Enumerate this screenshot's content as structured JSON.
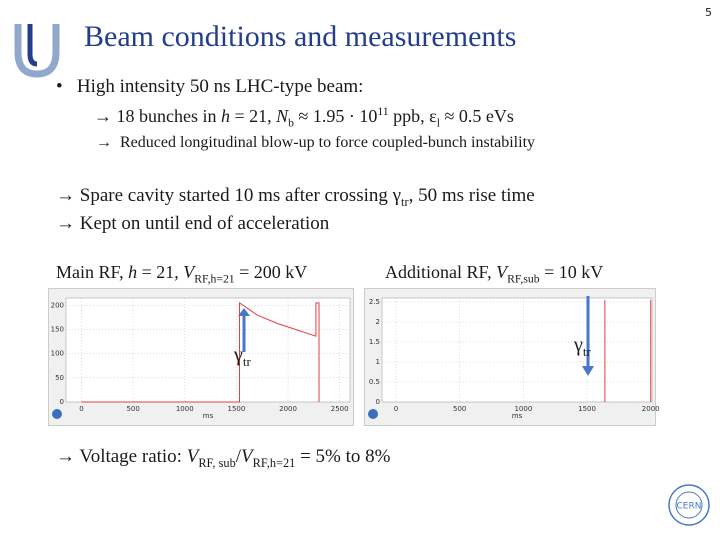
{
  "slide_number": "5",
  "title": "Beam conditions and measurements",
  "bullet": [
    "•",
    "High intensity 50 ns LHC-type beam:"
  ],
  "sub_1": [
    "→ ",
    "18 bunches in ",
    "h",
    " = 21, ",
    "N",
    "b",
    " ≈ 1.95 · 10",
    "11",
    " ppb, ",
    "ε",
    "l",
    " ≈ 0.5 eVs"
  ],
  "sub_2": [
    "→ ",
    "Reduced longitudinal blow-up to force coupled-bunch instability"
  ],
  "line_3": [
    "→ ",
    "Spare cavity started 10 ms after crossing ",
    "γ",
    "tr",
    ", 50 ms rise time"
  ],
  "line_4": [
    "→ ",
    "Kept on until end of acceleration"
  ],
  "caption_left": [
    "Main RF, ",
    "h",
    " = 21, ",
    "V",
    "RF,h=21",
    " = 200 kV"
  ],
  "caption_right": [
    "Additional RF, ",
    "V",
    "RF,sub",
    " = 10 kV"
  ],
  "conclusion": [
    "→ ",
    "Voltage ratio: ",
    "V",
    "RF, sub",
    "/",
    "V",
    "RF,h=21",
    " = 5% to 8%"
  ],
  "logo_label": "CERN",
  "plots": [
    {
      "type": "line",
      "marker_label": [
        "γ",
        "tr"
      ],
      "xlabel": "ms",
      "xlim": [
        -150,
        2600
      ],
      "ylim": [
        0,
        215
      ],
      "xticks": [
        0,
        500,
        1000,
        1500,
        2000,
        2500
      ],
      "yticks": [
        0,
        50,
        100,
        150,
        200
      ],
      "grid": true,
      "x": [
        0,
        1530,
        1530,
        1700,
        1900,
        2100,
        2270,
        2270,
        2300,
        2300
      ],
      "values": [
        0,
        0,
        205,
        180,
        162,
        148,
        136,
        205,
        205,
        0
      ],
      "color": "#e04040"
    },
    {
      "type": "line",
      "marker_label": [
        "γ",
        "tr"
      ],
      "xlabel": "ms",
      "xlim": [
        -110,
        2010
      ],
      "ylim": [
        0,
        2.6
      ],
      "xticks": [
        0,
        500,
        1000,
        1500,
        2000
      ],
      "yticks": [
        0,
        0.5,
        1,
        1.5,
        2,
        2.5
      ],
      "grid": true,
      "x": [
        1640,
        1640,
        1800,
        2000,
        2000
      ],
      "values": [
        0,
        2.55,
        null,
        2.55,
        0
      ],
      "color": "#e04040"
    }
  ]
}
